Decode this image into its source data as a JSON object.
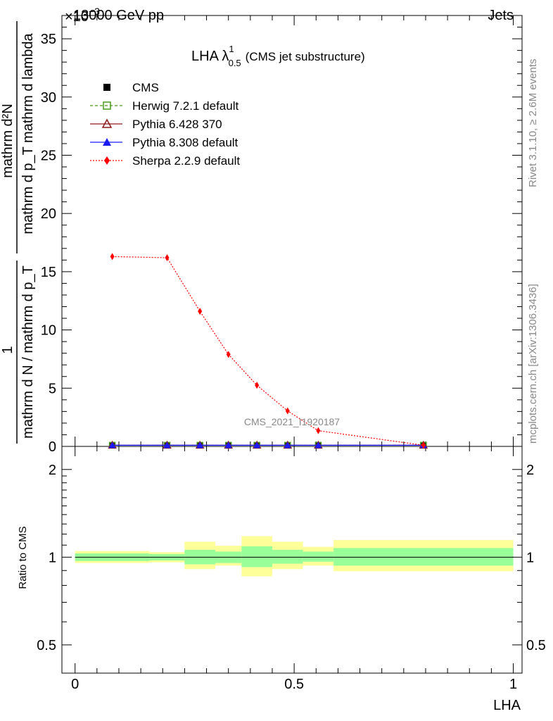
{
  "header": {
    "left": "13000 GeV pp",
    "exponent_label": "×10",
    "exponent_sup": "−3",
    "right": "Jets"
  },
  "side_text": {
    "rivet": "Rivet 3.1.10, ≥ 2.6M events",
    "mcplots": "mcplots.cern.ch [arXiv:1306.3436]"
  },
  "watermark": "CMS_2021_I1920187",
  "plot_title": {
    "main": "LHA λ",
    "sup": "1",
    "sub": "0.5",
    "suffix": "(CMS jet substructure)"
  },
  "legend": [
    {
      "label": "CMS",
      "color": "#000000",
      "marker": "square-filled"
    },
    {
      "label": "Herwig 7.2.1 default",
      "color": "#4a9a1a",
      "marker": "square-open",
      "line": "dashed"
    },
    {
      "label": "Pythia 6.428 370",
      "color": "#8b1a1a",
      "marker": "triangle-open",
      "line": "solid"
    },
    {
      "label": "Pythia 8.308 default",
      "color": "#1a1aff",
      "marker": "triangle-filled",
      "line": "solid"
    },
    {
      "label": "Sherpa 2.2.9 default",
      "color": "#ff0000",
      "marker": "diamond-filled",
      "line": "dotted"
    }
  ],
  "axes": {
    "main_ylabel_num": "mathrm d²N",
    "main_ylabel_den": "mathrm d p_T mathrm d lambda",
    "main_ylabel_pre_num": "1",
    "main_ylabel_pre_den": "mathrm d N / mathrm d p_T",
    "ratio_ylabel": "Ratio to CMS",
    "xlabel": "LHA"
  },
  "chart_data": [
    {
      "type": "line",
      "panel": "main",
      "x_bins": [
        0.0,
        0.17,
        0.25,
        0.32,
        0.38,
        0.45,
        0.52,
        0.59,
        1.0
      ],
      "x": [
        0.085,
        0.21,
        0.285,
        0.35,
        0.415,
        0.485,
        0.555,
        0.795
      ],
      "xlim": [
        -0.03,
        1.02
      ],
      "ylim": [
        0,
        37
      ],
      "yticks": [
        0,
        5,
        10,
        15,
        20,
        25,
        30,
        35
      ],
      "xticks": [
        0,
        0.5,
        1
      ],
      "series": [
        {
          "name": "CMS",
          "values": [
            0.1,
            0.1,
            0.1,
            0.1,
            0.1,
            0.1,
            0.1,
            0.1
          ]
        },
        {
          "name": "Herwig 7.2.1 default",
          "values": [
            0.1,
            0.1,
            0.1,
            0.1,
            0.1,
            0.1,
            0.1,
            0.1
          ]
        },
        {
          "name": "Pythia 6.428 370",
          "values": [
            0.1,
            0.1,
            0.1,
            0.1,
            0.1,
            0.1,
            0.1,
            0.1
          ]
        },
        {
          "name": "Pythia 8.308 default",
          "values": [
            0.1,
            0.1,
            0.1,
            0.1,
            0.1,
            0.1,
            0.1,
            0.1
          ]
        },
        {
          "name": "Sherpa 2.2.9 default",
          "values": [
            16.3,
            16.2,
            11.6,
            7.9,
            5.25,
            3.05,
            1.35,
            0.1
          ]
        }
      ]
    },
    {
      "type": "area",
      "panel": "ratio",
      "x_bins": [
        0.0,
        0.17,
        0.25,
        0.32,
        0.38,
        0.45,
        0.52,
        0.59,
        1.0
      ],
      "ylim": [
        0.4,
        2.4
      ],
      "log_y": true,
      "yticks": [
        0.5,
        1,
        2
      ],
      "inner_band": [
        [
          0.97,
          1.03
        ],
        [
          0.975,
          1.025
        ],
        [
          0.945,
          1.06
        ],
        [
          0.955,
          1.045
        ],
        [
          0.925,
          1.09
        ],
        [
          0.95,
          1.06
        ],
        [
          0.965,
          1.045
        ],
        [
          0.935,
          1.075
        ]
      ],
      "outer_band": [
        [
          0.955,
          1.05
        ],
        [
          0.96,
          1.04
        ],
        [
          0.91,
          1.13
        ],
        [
          0.935,
          1.095
        ],
        [
          0.86,
          1.18
        ],
        [
          0.91,
          1.13
        ],
        [
          0.935,
          1.085
        ],
        [
          0.895,
          1.145
        ]
      ],
      "inner_color": "#99ff99",
      "outer_color": "#ffff99",
      "reference": 1
    }
  ]
}
